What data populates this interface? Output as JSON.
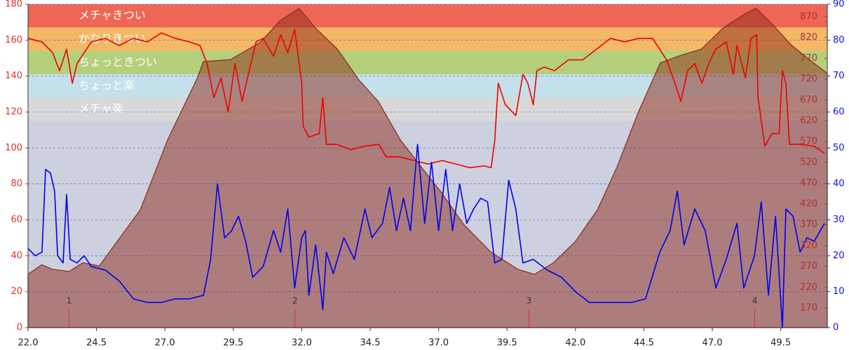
{
  "chart_data": {
    "type": "line",
    "xlim": [
      22,
      51.2
    ],
    "xticks": [
      {
        "value": 22,
        "label": "22.0"
      },
      {
        "value": 24.5,
        "label": "24.5"
      },
      {
        "value": 27,
        "label": "27.0"
      },
      {
        "value": 29.5,
        "label": "29.5"
      },
      {
        "value": 32,
        "label": "32.0"
      },
      {
        "value": 34.5,
        "label": "34.5"
      },
      {
        "value": 37,
        "label": "37.0"
      },
      {
        "value": 39.5,
        "label": "39.5"
      },
      {
        "value": 42,
        "label": "42.0"
      },
      {
        "value": 44.5,
        "label": "44.5"
      },
      {
        "value": 47,
        "label": "47.0"
      },
      {
        "value": 49.5,
        "label": "49.5"
      }
    ],
    "ylim": [
      0,
      180
    ],
    "yticks": [
      0,
      20,
      40,
      60,
      80,
      100,
      120,
      140,
      160,
      180
    ],
    "y2lim": [
      123,
      900
    ],
    "y2ticks": [
      170,
      220,
      270,
      320,
      370,
      420,
      470,
      520,
      570,
      620,
      670,
      720,
      770,
      820,
      870
    ],
    "y3lim": [
      0,
      90
    ],
    "y3ticks": [
      0,
      10,
      20,
      30,
      40,
      50,
      60,
      70,
      80,
      90
    ],
    "grid": true,
    "background": "#cdd0de",
    "zones": [
      {
        "name": "メチャきつい",
        "from": 167,
        "to": 180,
        "color": "#ee6655"
      },
      {
        "name": "かなりきつい",
        "from": 154,
        "to": 167,
        "color": "#f5b865"
      },
      {
        "name": "ちょっときつい",
        "from": 141,
        "to": 154,
        "color": "#b4d07c"
      },
      {
        "name": "ちょっと楽",
        "from": 128,
        "to": 141,
        "color": "#c4e0ea"
      },
      {
        "name": "メチャ楽",
        "from": 115,
        "to": 128,
        "color": "#d8d8d8"
      }
    ],
    "laps": [
      {
        "label": "1",
        "x": 23.5
      },
      {
        "label": "2",
        "x": 31.75
      },
      {
        "label": "3",
        "x": 40.3
      },
      {
        "label": "4",
        "x": 48.55
      }
    ],
    "lap_color": "#e03030",
    "series": [
      {
        "type": "area",
        "axis": "y2",
        "color": "#8b2a1a",
        "opacity": 0.5,
        "x": [
          22.0,
          22.5,
          22.9,
          23.5,
          24.0,
          24.6,
          26.1,
          27.1,
          28.2,
          28.4,
          29.4,
          30.5,
          31.2,
          31.9,
          32.5,
          33.3,
          34.1,
          34.8,
          35.6,
          36.4,
          37.1,
          37.9,
          38.9,
          39.9,
          40.5,
          41.2,
          42.0,
          42.8,
          43.5,
          44.3,
          45.1,
          45.8,
          46.6,
          47.4,
          48.2,
          48.6,
          49.2,
          49.9,
          50.7,
          51.2
        ],
        "values": [
          251,
          274,
          263,
          258,
          279,
          271,
          406,
          574,
          725,
          762,
          767,
          809,
          860,
          890,
          843,
          792,
          717,
          666,
          574,
          506,
          448,
          372,
          305,
          263,
          251,
          279,
          330,
          406,
          506,
          641,
          759,
          776,
          792,
          843,
          877,
          890,
          851,
          801,
          759,
          734
        ]
      },
      {
        "type": "line",
        "axis": "y",
        "color": "#ee0000",
        "x": [
          22.0,
          22.51,
          22.9,
          23.15,
          23.41,
          23.62,
          23.79,
          24.31,
          24.82,
          25.33,
          25.85,
          26.36,
          26.87,
          27.38,
          27.9,
          28.28,
          28.54,
          28.79,
          29.05,
          29.31,
          29.56,
          29.82,
          30.08,
          30.33,
          30.59,
          30.97,
          31.23,
          31.49,
          31.74,
          32.0,
          32.05,
          32.26,
          32.64,
          32.77,
          32.9,
          33.28,
          33.79,
          34.31,
          34.82,
          35.08,
          35.59,
          36.1,
          36.62,
          37.13,
          37.64,
          38.15,
          38.67,
          38.92,
          39.05,
          39.18,
          39.44,
          39.82,
          40.08,
          40.26,
          40.46,
          40.59,
          40.85,
          41.23,
          41.74,
          42.26,
          42.77,
          43.28,
          43.79,
          44.31,
          44.82,
          45.33,
          45.59,
          45.85,
          46.1,
          46.36,
          46.62,
          46.87,
          47.13,
          47.51,
          47.77,
          47.9,
          48.21,
          48.41,
          48.62,
          48.67,
          48.92,
          49.18,
          49.44,
          49.56,
          49.69,
          49.82,
          50.21,
          50.72,
          51.1
        ],
        "values": [
          161,
          159,
          153,
          143,
          155,
          136,
          147,
          159,
          161,
          157,
          161,
          159,
          164,
          161,
          159,
          157,
          147,
          128,
          139,
          120,
          147,
          126,
          143,
          159,
          161,
          151,
          163,
          153,
          166,
          136,
          112,
          106,
          108,
          128,
          102,
          102,
          99,
          101,
          102,
          95,
          95,
          93,
          91,
          93,
          91,
          89,
          90,
          89,
          104,
          136,
          124,
          118,
          141,
          136,
          124,
          143,
          145,
          143,
          149,
          149,
          155,
          161,
          159,
          161,
          161,
          149,
          138,
          126,
          143,
          147,
          136,
          147,
          155,
          159,
          141,
          157,
          139,
          161,
          163,
          128,
          101,
          108,
          108,
          143,
          136,
          102,
          102,
          101,
          97
        ]
      },
      {
        "type": "line",
        "axis": "y3",
        "color": "#0000ee",
        "x": [
          22.0,
          22.26,
          22.51,
          22.64,
          22.82,
          22.97,
          23.08,
          23.28,
          23.41,
          23.54,
          23.79,
          24.05,
          24.31,
          24.82,
          25.33,
          25.85,
          26.36,
          26.87,
          27.38,
          27.9,
          28.41,
          28.67,
          28.92,
          29.18,
          29.44,
          29.69,
          29.95,
          30.21,
          30.59,
          30.97,
          31.23,
          31.49,
          31.74,
          32.0,
          32.13,
          32.26,
          32.51,
          32.77,
          32.9,
          33.15,
          33.54,
          33.92,
          34.31,
          34.56,
          34.95,
          35.21,
          35.46,
          35.72,
          35.97,
          36.23,
          36.49,
          36.74,
          37.0,
          37.26,
          37.51,
          37.77,
          38.03,
          38.28,
          38.54,
          38.79,
          39.05,
          39.31,
          39.56,
          39.82,
          40.08,
          40.46,
          40.97,
          41.49,
          42.0,
          42.51,
          43.03,
          43.54,
          44.05,
          44.56,
          45.08,
          45.46,
          45.72,
          45.97,
          46.36,
          46.74,
          47.13,
          47.51,
          47.9,
          48.15,
          48.54,
          48.79,
          49.05,
          49.31,
          49.56,
          49.69,
          49.95,
          50.21,
          50.46,
          50.72,
          51.1
        ],
        "values": [
          22,
          20,
          21,
          44,
          43,
          38,
          20,
          18,
          37,
          19,
          18,
          20,
          17,
          16,
          13,
          8,
          7,
          7,
          8,
          8,
          9,
          19,
          40,
          25,
          27,
          31,
          24,
          14,
          17,
          27,
          21,
          33,
          11,
          25,
          27,
          9,
          23,
          5,
          21,
          15,
          25,
          19,
          33,
          25,
          29,
          39,
          27,
          36,
          27,
          51,
          29,
          46,
          27,
          44,
          27,
          40,
          29,
          33,
          36,
          35,
          18,
          19,
          41,
          33,
          18,
          19,
          16,
          14,
          10,
          7,
          7,
          7,
          7,
          8,
          21,
          27,
          38,
          23,
          33,
          27,
          11,
          19,
          29,
          11,
          20,
          35,
          9,
          31,
          0,
          33,
          31,
          21,
          25,
          24,
          29
        ]
      }
    ],
    "axis_colors": {
      "y": "#e03030",
      "y2": "#b03030",
      "y3": "#1010e0"
    }
  }
}
